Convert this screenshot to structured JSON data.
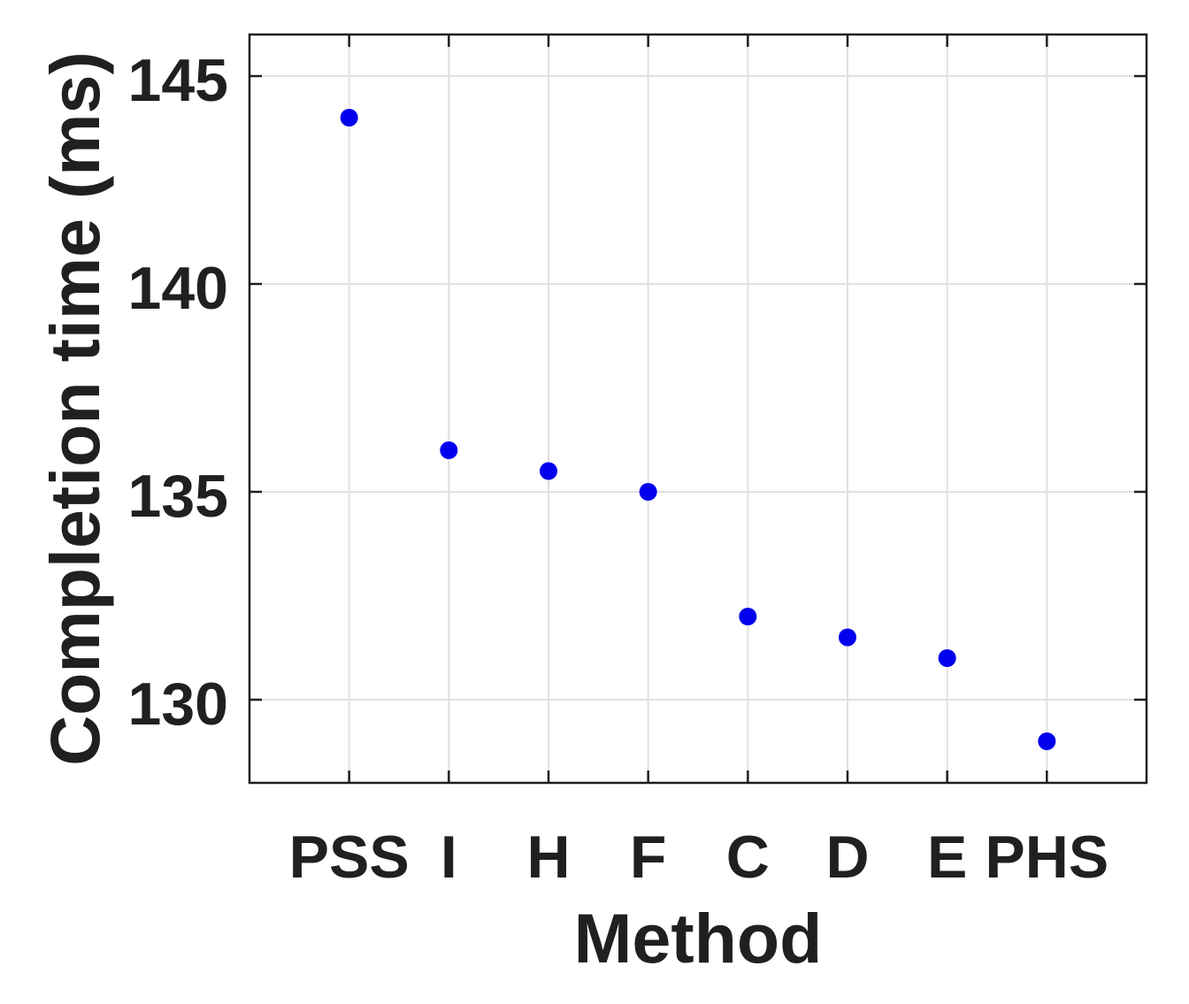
{
  "figure": {
    "background": "#ffffff"
  },
  "chart_data": {
    "type": "scatter",
    "title": "",
    "xlabel": "Method",
    "ylabel": "Completion time (ms)",
    "categories": [
      "PSS",
      "I",
      "H",
      "F",
      "C",
      "D",
      "E",
      "PHS"
    ],
    "values": [
      144,
      136,
      135.5,
      135,
      132,
      131.5,
      131,
      129
    ],
    "yticks": [
      130,
      135,
      140,
      145
    ],
    "ylim": [
      128,
      146
    ],
    "xlim": [
      0,
      9
    ],
    "grid": true,
    "legend": "none",
    "marker": "filled-circle",
    "marker_color": "#0000ee",
    "axis_color": "#1f1f1f",
    "grid_color": "#e0e0e0",
    "label_color": "#202020"
  }
}
